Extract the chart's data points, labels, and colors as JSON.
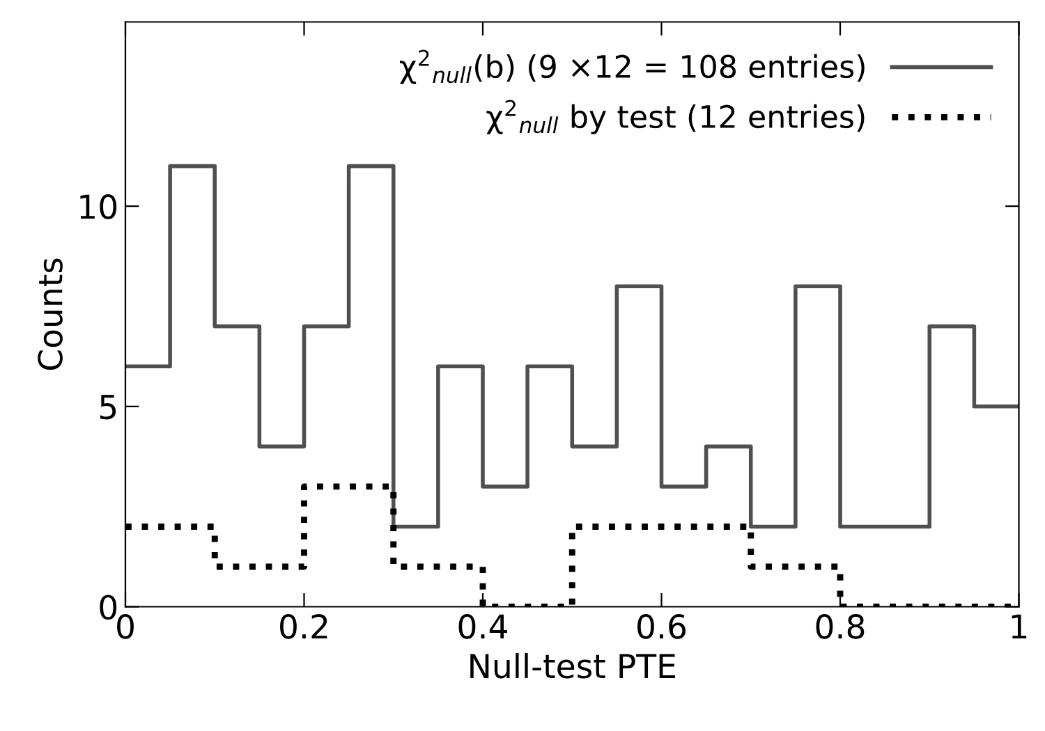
{
  "chart_data": {
    "type": "step",
    "xlabel": "Null-test PTE",
    "ylabel": "Counts",
    "xlim": [
      0,
      1
    ],
    "ylim": [
      0,
      14.6
    ],
    "xticks": [
      0,
      0.2,
      0.4,
      0.6,
      0.8,
      1
    ],
    "yticks": [
      0,
      5,
      10
    ],
    "grid": false,
    "legend": "top right",
    "series": [
      {
        "name": "χ$^{2}$$_{null}$(b) (9 ×12 = 108 entries)",
        "color": "#505050",
        "line_style": "solid",
        "x": [
          0,
          0.05,
          0.1,
          0.15,
          0.2,
          0.25,
          0.3,
          0.35,
          0.4,
          0.45,
          0.5,
          0.55,
          0.6,
          0.65,
          0.7,
          0.75,
          0.8,
          0.85,
          0.9,
          0.95,
          1
        ],
        "values": [
          6,
          11,
          7,
          4,
          7,
          11,
          2,
          6,
          3,
          6,
          4,
          8,
          3,
          4,
          2,
          8,
          2,
          2,
          7,
          5,
          5
        ]
      },
      {
        "name": "χ$^{2}$$_{null}$ by test (12 entries)",
        "color": "#000000",
        "line_style": "dotted",
        "x": [
          0,
          0.1,
          0.2,
          0.3,
          0.4,
          0.5,
          0.6,
          0.7,
          0.8,
          0.9,
          1
        ],
        "values": [
          2,
          1,
          3,
          1,
          0,
          2,
          2,
          1,
          0,
          0,
          0
        ]
      }
    ]
  }
}
